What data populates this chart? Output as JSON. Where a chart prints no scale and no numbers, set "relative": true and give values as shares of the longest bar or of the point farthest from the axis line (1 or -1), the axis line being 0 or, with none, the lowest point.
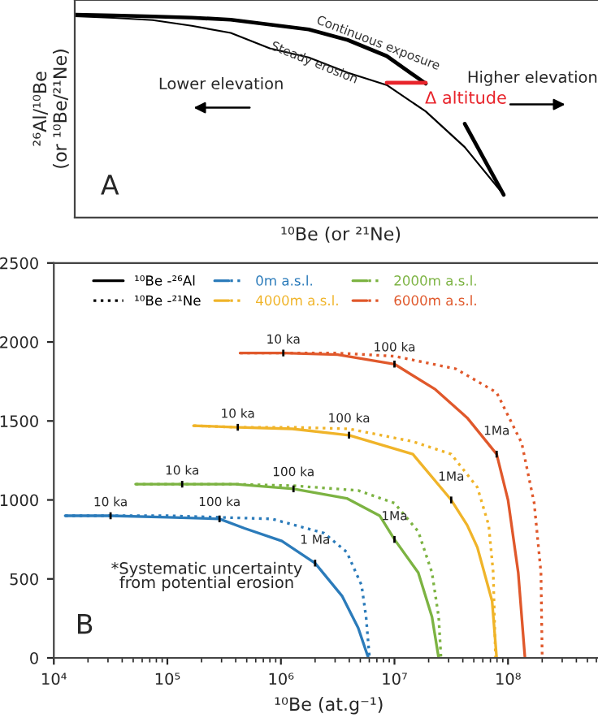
{
  "chart_data": [
    {
      "type": "line",
      "relative": true,
      "tick_labels": false,
      "xlabel": "¹⁰Be (or ²¹Ne)",
      "ylabel": "²⁶Al/¹⁰Be\n(or ¹⁰Be/²¹Ne)",
      "categories": [
        null,
        null,
        null,
        null,
        null,
        null,
        null,
        null,
        null,
        null,
        null,
        null
      ],
      "series": [
        {
          "name": "Continuous exposure",
          "color": "#000000",
          "values": [
            1,
            0.996,
            0.991,
            0.985,
            0.975,
            0.951,
            0.927,
            0.875,
            0.796,
            0.66,
            null,
            null
          ]
        },
        {
          "name": "Steady erosion",
          "color": "#000000",
          "values": [
            0.992,
            0.984,
            0.973,
            0.945,
            0.91,
            0.834,
            0.789,
            0.714,
            0.653,
            0.523,
            0.347,
            0.112
          ]
        },
        {
          "color": "#e8242b",
          "values": [
            null,
            null,
            null,
            null,
            null,
            null,
            null,
            null,
            0.664,
            0.664,
            null,
            null
          ]
        },
        {
          "color": "#000000",
          "values": [
            null,
            null,
            null,
            null,
            null,
            null,
            null,
            null,
            null,
            null,
            0.462,
            0.112
          ]
        }
      ],
      "annotations": [
        "Lower elevation",
        "Higher elevation",
        "Δ altitude",
        "A"
      ]
    },
    {
      "type": "line",
      "log": "x",
      "xlim": [
        10000,
        700000000
      ],
      "ylim": [
        0,
        2500
      ],
      "xlabel": "¹⁰Be (at.g⁻¹)",
      "legend": "top left",
      "xticks": [
        {
          "value": 10000,
          "label": "10⁴"
        },
        {
          "value": 100000,
          "label": "10⁵"
        },
        {
          "value": 1000000,
          "label": "10⁶"
        },
        {
          "value": 10000000,
          "label": "10⁷"
        },
        {
          "value": 100000000,
          "label": "10⁸"
        }
      ],
      "yticks": [
        0,
        500,
        1000,
        1500,
        2000,
        2500
      ],
      "series": [
        {
          "name": "0m a.s.l.",
          "color": "#2b7bba",
          "line_style": "solid",
          "x": [
            12600,
            31600,
            100000,
            288000,
            479000,
            1020000,
            2000000,
            3470000,
            4790000,
            5890000
          ],
          "values": [
            900,
            900,
            890,
            880,
            820,
            740,
            600,
            390,
            190,
            0
          ]
        },
        {
          "color": "#2b7bba",
          "line_style": "dotted",
          "x": [
            12600,
            31600,
            100000,
            288000,
            832000,
            2400000,
            3800000,
            5130000,
            5620000,
            6030000
          ],
          "values": [
            900,
            900,
            900,
            890,
            880,
            790,
            670,
            460,
            260,
            0
          ]
        },
        {
          "name": "2000m a.s.l.",
          "color": "#7cb342",
          "line_style": "solid",
          "x": [
            52500,
            135000,
            398000,
            1290000,
            3800000,
            7410000,
            10000000,
            16200000,
            21400000,
            24500000
          ],
          "values": [
            1100,
            1100,
            1100,
            1070,
            1010,
            900,
            750,
            540,
            260,
            0
          ]
        },
        {
          "color": "#7cb342",
          "line_style": "dotted",
          "x": [
            52500,
            135000,
            398000,
            1290000,
            4790000,
            10000000,
            16200000,
            21400000,
            24500000,
            25700000
          ],
          "values": [
            1100,
            1100,
            1100,
            1090,
            1060,
            980,
            800,
            540,
            260,
            0
          ]
        },
        {
          "name": "4000m a.s.l.",
          "color": "#f0b429",
          "line_style": "solid",
          "x": [
            170000,
            417000,
            1260000,
            3980000,
            14500000,
            31600000,
            43700000,
            53700000,
            72400000,
            79400000
          ],
          "values": [
            1470,
            1460,
            1450,
            1410,
            1290,
            1000,
            840,
            700,
            360,
            0
          ]
        },
        {
          "color": "#f0b429",
          "line_style": "dotted",
          "x": [
            170000,
            417000,
            1260000,
            3980000,
            14500000,
            31600000,
            53700000,
            67600000,
            74100000,
            77600000
          ],
          "values": [
            1470,
            1460,
            1460,
            1450,
            1370,
            1290,
            1080,
            840,
            540,
            0
          ]
        },
        {
          "name": "6000m a.s.l.",
          "color": "#e0582b",
          "line_style": "solid",
          "x": [
            437000,
            1050000,
            3160000,
            10000000,
            22900000,
            43700000,
            79400000,
            100000000,
            123000000,
            141000000
          ],
          "values": [
            1930,
            1930,
            1920,
            1860,
            1700,
            1520,
            1290,
            1000,
            540,
            0
          ]
        },
        {
          "color": "#e0582b",
          "line_style": "dotted",
          "x": [
            437000,
            1050000,
            3160000,
            10000000,
            34700000,
            79400000,
            132000000,
            170000000,
            195000000,
            200000000
          ],
          "values": [
            1930,
            1930,
            1930,
            1910,
            1830,
            1680,
            1360,
            980,
            540,
            0
          ]
        }
      ],
      "annotations": [
        "¹⁰Be -²⁶Al",
        "¹⁰Be -²¹Ne",
        {
          "text": "10 ka",
          "x": 31600,
          "y": 900
        },
        {
          "text": "100 ka",
          "x": 288000,
          "y": 880
        },
        {
          "text": "1 Ma",
          "x": 2000000,
          "y": 600
        },
        {
          "text": "10 ka",
          "x": 135000,
          "y": 1100
        },
        {
          "text": "100 ka",
          "x": 1290000,
          "y": 1070
        },
        {
          "text": "1Ma",
          "x": 10000000,
          "y": 750
        },
        {
          "text": "10 ka",
          "x": 417000,
          "y": 1460
        },
        {
          "text": "100 ka",
          "x": 3980000,
          "y": 1410
        },
        {
          "text": "1Ma",
          "x": 31600000,
          "y": 1000
        },
        {
          "text": "10 ka",
          "x": 1050000,
          "y": 1930
        },
        {
          "text": "100 ka",
          "x": 10000000,
          "y": 1860
        },
        {
          "text": "1Ma",
          "x": 79400000,
          "y": 1290
        },
        "*Systematic uncertainty\nfrom potential erosion",
        "B"
      ]
    }
  ]
}
